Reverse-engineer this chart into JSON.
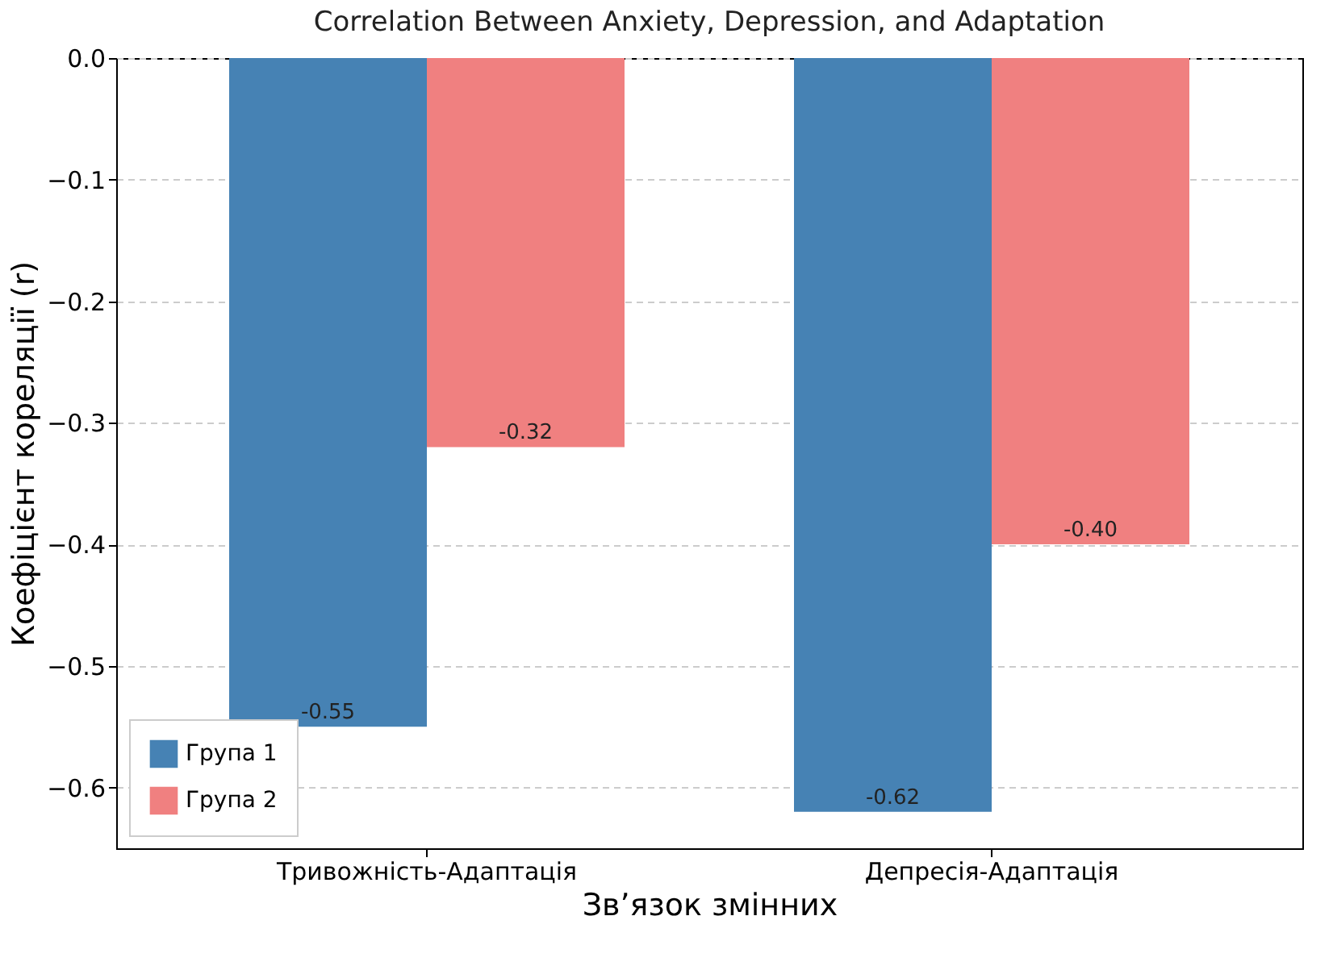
{
  "chart_data": {
    "type": "bar",
    "title": "Correlation Between Anxiety, Depression, and Adaptation",
    "xlabel": "Зв’язок змінних",
    "ylabel": "Коефіцієнт кореляції (r)",
    "categories": [
      "Тривожність-Адаптація",
      "Депресія-Адаптація"
    ],
    "series": [
      {
        "name": "Група 1",
        "color": "#4682b4",
        "values": [
          -0.55,
          -0.62
        ],
        "value_labels": [
          "-0.55",
          "-0.62"
        ]
      },
      {
        "name": "Група 2",
        "color": "#f08080",
        "values": [
          -0.32,
          -0.4
        ],
        "value_labels": [
          "-0.32",
          "-0.40"
        ]
      }
    ],
    "ylim": [
      -0.65,
      0
    ],
    "yticks": [
      {
        "value": 0,
        "label": "0.0"
      },
      {
        "value": -0.1,
        "label": "−0.1"
      },
      {
        "value": -0.2,
        "label": "−0.2"
      },
      {
        "value": -0.3,
        "label": "−0.3"
      },
      {
        "value": -0.4,
        "label": "−0.4"
      },
      {
        "value": -0.5,
        "label": "−0.5"
      },
      {
        "value": -0.6,
        "label": "−0.6"
      }
    ],
    "grid": "y",
    "legend": "bottom left"
  }
}
